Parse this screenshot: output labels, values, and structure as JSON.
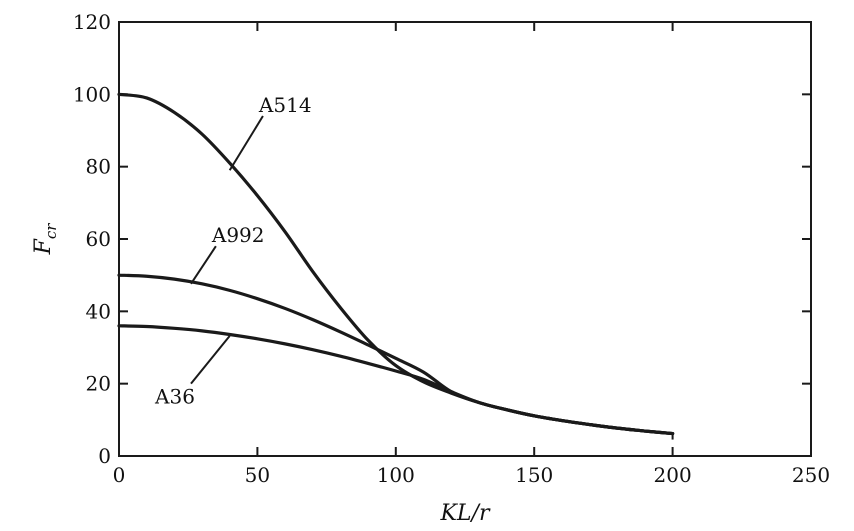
{
  "chart_data": {
    "type": "line",
    "title": "",
    "xlabel": "KL/r",
    "ylabel_main": "F",
    "ylabel_sub": "cr",
    "xlim": [
      0,
      250
    ],
    "ylim": [
      0,
      120
    ],
    "x_ticks": [
      "0",
      "50",
      "100",
      "150",
      "200",
      "250"
    ],
    "y_ticks": [
      "0",
      "20",
      "40",
      "60",
      "80",
      "100",
      "120"
    ],
    "grid": false,
    "legend": "none",
    "series": [
      {
        "name": "A514",
        "x": [
          0,
          10,
          20,
          30,
          40,
          50,
          60,
          70,
          80,
          90,
          100,
          110,
          120,
          130,
          140,
          150,
          160,
          170,
          180,
          190,
          200
        ],
        "y": [
          100,
          99,
          95,
          89,
          81,
          72,
          62,
          51,
          41,
          32,
          25,
          20.5,
          17.4,
          14.8,
          12.8,
          11.1,
          9.8,
          8.7,
          7.7,
          6.9,
          6.2
        ]
      },
      {
        "name": "A992",
        "x": [
          0,
          10,
          20,
          30,
          40,
          50,
          60,
          70,
          80,
          90,
          100,
          110,
          120,
          130,
          140,
          150,
          160,
          170,
          180,
          190,
          200
        ],
        "y": [
          50,
          49.7,
          48.9,
          47.6,
          45.8,
          43.5,
          40.8,
          37.7,
          34.3,
          30.7,
          27,
          23.2,
          17.8,
          14.8,
          12.8,
          11.1,
          9.8,
          8.7,
          7.7,
          6.9,
          6.2
        ]
      },
      {
        "name": "A36",
        "x": [
          0,
          10,
          20,
          30,
          40,
          50,
          60,
          70,
          80,
          90,
          100,
          110,
          120,
          130,
          140,
          150,
          160,
          170,
          180,
          190,
          200
        ],
        "y": [
          36,
          35.8,
          35.3,
          34.6,
          33.6,
          32.4,
          31,
          29.4,
          27.6,
          25.6,
          23.5,
          21.2,
          17.8,
          14.8,
          12.8,
          11.1,
          9.8,
          8.7,
          7.7,
          6.9,
          6.2
        ]
      }
    ],
    "annotations": [
      {
        "text": "A514",
        "series": "A514",
        "leader_x": 40,
        "leader_y": 79,
        "label_x": 52,
        "label_y": 94
      },
      {
        "text": "A992",
        "series": "A992",
        "leader_x": 26,
        "leader_y": 47.6,
        "label_x": 35,
        "label_y": 58
      },
      {
        "text": "A36",
        "series": "A36",
        "leader_x": 40,
        "leader_y": 33.2,
        "label_x": 26,
        "label_y": 20
      }
    ]
  }
}
